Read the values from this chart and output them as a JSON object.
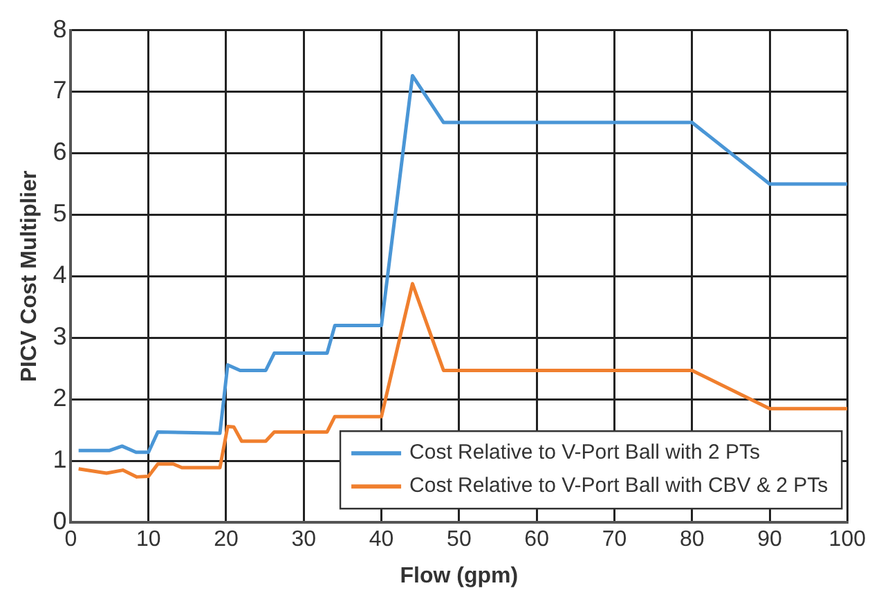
{
  "chart_data": {
    "type": "line",
    "xlabel": "Flow (gpm)",
    "ylabel": "PICV Cost Multiplier",
    "xlim": [
      0,
      100
    ],
    "xticks": [
      0,
      10,
      20,
      30,
      40,
      50,
      60,
      70,
      80,
      90,
      100
    ],
    "ylim": [
      0,
      8
    ],
    "yticks": [
      0,
      1,
      2,
      3,
      4,
      5,
      6,
      7,
      8
    ],
    "grid": true,
    "legend": "bottom right",
    "marker": "none",
    "line_style": "solid",
    "series": [
      {
        "name": "Cost Relative to V-Port Ball with 2 PTs",
        "color": "#4a96d6",
        "x": [
          1,
          5,
          6.6,
          8.4,
          10,
          11.2,
          19.2,
          20.2,
          21.8,
          25.1,
          26.2,
          33,
          34,
          40,
          44,
          48,
          80,
          90,
          100
        ],
        "values": [
          1.17,
          1.17,
          1.24,
          1.14,
          1.14,
          1.47,
          1.45,
          2.56,
          2.47,
          2.47,
          2.75,
          2.75,
          3.2,
          3.2,
          7.26,
          6.5,
          6.5,
          5.5,
          5.5
        ]
      },
      {
        "name": "Cost Relative to V-Port Ball with CBV & 2 PTs",
        "color": "#f07f2e",
        "x": [
          1,
          4.6,
          6.7,
          8.5,
          10,
          11.2,
          13.2,
          14.3,
          19.2,
          20.2,
          21,
          22,
          25.1,
          26.2,
          33,
          34,
          40,
          44,
          48,
          80,
          90,
          100
        ],
        "values": [
          0.87,
          0.8,
          0.85,
          0.74,
          0.75,
          0.95,
          0.95,
          0.89,
          0.89,
          1.56,
          1.55,
          1.32,
          1.32,
          1.47,
          1.47,
          1.72,
          1.72,
          3.88,
          2.47,
          2.47,
          1.85,
          1.85
        ]
      }
    ]
  }
}
